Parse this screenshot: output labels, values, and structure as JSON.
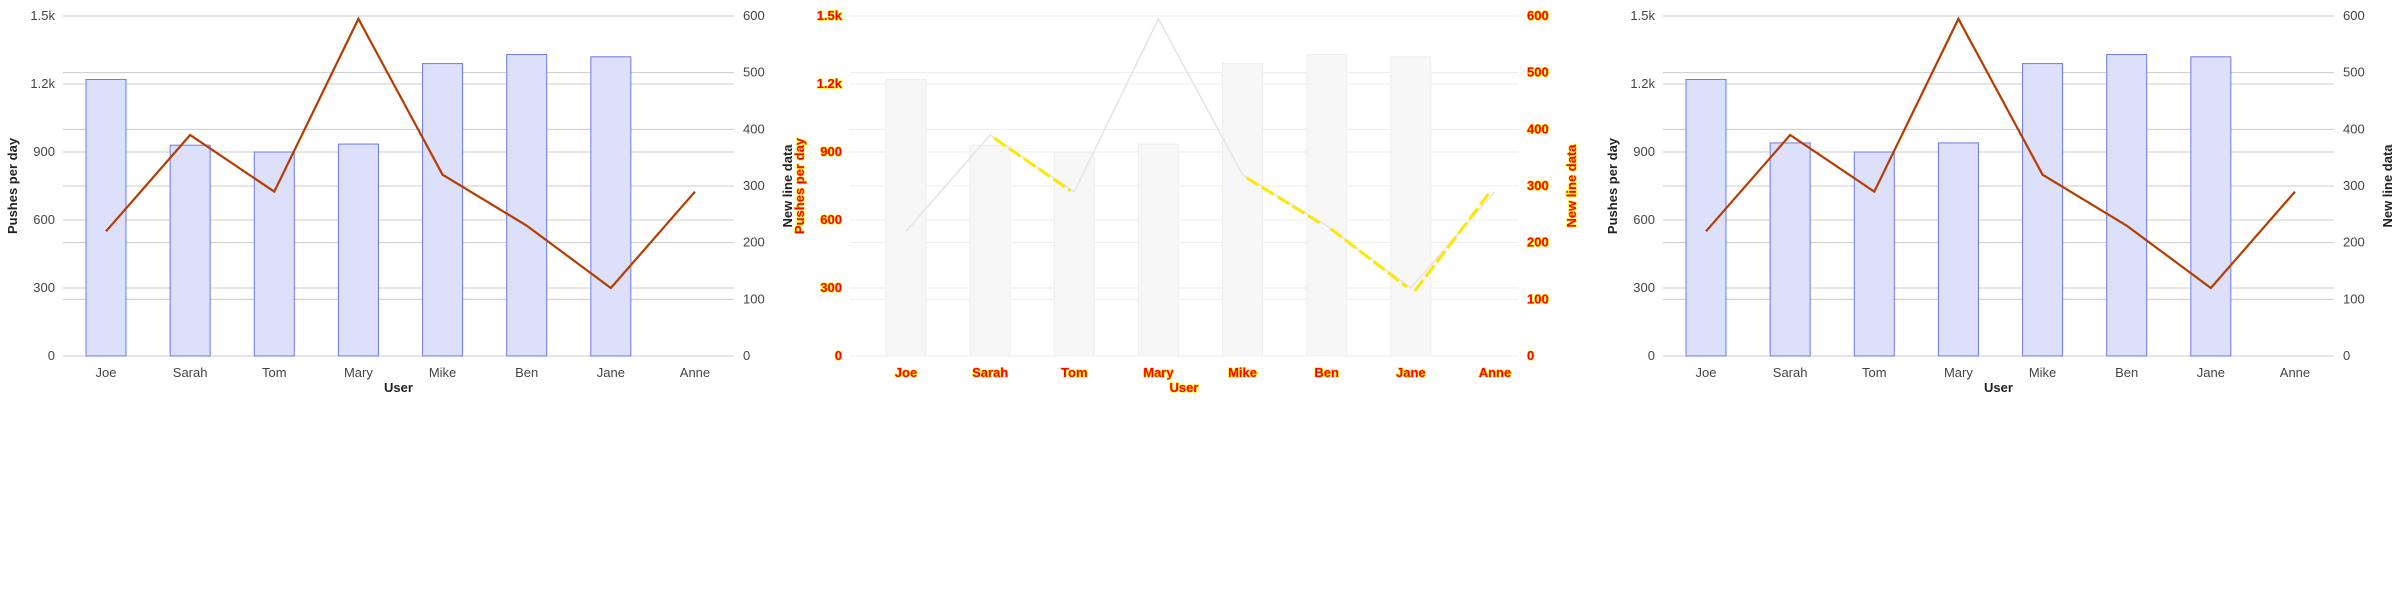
{
  "chart_data": [
    {
      "type": "bar+line",
      "variant": "normal",
      "categories": [
        "Joe",
        "Sarah",
        "Tom",
        "Mary",
        "Mike",
        "Ben",
        "Jane",
        "Anne"
      ],
      "series": [
        {
          "type": "bar",
          "axis": "left",
          "values": [
            1220,
            930,
            900,
            935,
            1290,
            1330,
            1320,
            0
          ]
        },
        {
          "type": "line",
          "axis": "right",
          "values": [
            220,
            390,
            290,
            595,
            320,
            230,
            120,
            290
          ]
        }
      ],
      "xlabel": "User",
      "ylabel": "Pushes per day",
      "y2label": "New line data",
      "ylim": [
        0,
        1500
      ],
      "y2lim": [
        0,
        600
      ],
      "yticks": [
        "0",
        "300",
        "600",
        "900",
        "1.2k",
        "1.5k"
      ],
      "y2ticks": [
        "0",
        "100",
        "200",
        "300",
        "400",
        "500",
        "600"
      ],
      "colors": {
        "bar_fill": "#dde0fa",
        "bar_stroke": "#6b78e6",
        "line": "#b53d00"
      }
    },
    {
      "type": "bar+line",
      "variant": "diff",
      "categories": [
        "Joe",
        "Sarah",
        "Tom",
        "Mary",
        "Mike",
        "Ben",
        "Jane",
        "Anne"
      ],
      "series": [
        {
          "type": "bar",
          "axis": "left",
          "values": [
            1220,
            930,
            900,
            935,
            1290,
            1330,
            1320,
            0
          ]
        },
        {
          "type": "line",
          "axis": "right",
          "values": [
            220,
            390,
            290,
            595,
            320,
            230,
            120,
            290
          ]
        }
      ],
      "xlabel": "User",
      "ylabel": "Pushes per day",
      "y2label": "New line data",
      "ylim": [
        0,
        1500
      ],
      "y2lim": [
        0,
        600
      ],
      "yticks": [
        "0",
        "300",
        "600",
        "900",
        "1.2k",
        "1.5k"
      ],
      "y2ticks": [
        "0",
        "100",
        "200",
        "300",
        "400",
        "500",
        "600"
      ],
      "colors": {
        "bar_fill": "#f7f7f7",
        "bar_stroke": "#eeeeee",
        "line": "#e4e4e4",
        "highlight": "#ffe800",
        "text": "#ff0000"
      }
    },
    {
      "type": "bar+line",
      "variant": "normal",
      "categories": [
        "Joe",
        "Sarah",
        "Tom",
        "Mary",
        "Mike",
        "Ben",
        "Jane",
        "Anne"
      ],
      "series": [
        {
          "type": "bar",
          "axis": "left",
          "values": [
            1220,
            940,
            900,
            940,
            1290,
            1330,
            1320,
            0
          ]
        },
        {
          "type": "line",
          "axis": "right",
          "values": [
            220,
            390,
            290,
            595,
            320,
            230,
            120,
            290
          ]
        }
      ],
      "xlabel": "User",
      "ylabel": "Pushes per day",
      "y2label": "New line data",
      "ylim": [
        0,
        1500
      ],
      "y2lim": [
        0,
        600
      ],
      "yticks": [
        "0",
        "300",
        "600",
        "900",
        "1.2k",
        "1.5k"
      ],
      "y2ticks": [
        "0",
        "100",
        "200",
        "300",
        "400",
        "500",
        "600"
      ],
      "colors": {
        "bar_fill": "#dde0fa",
        "bar_stroke": "#6b78e6",
        "line": "#b53d00"
      }
    }
  ]
}
